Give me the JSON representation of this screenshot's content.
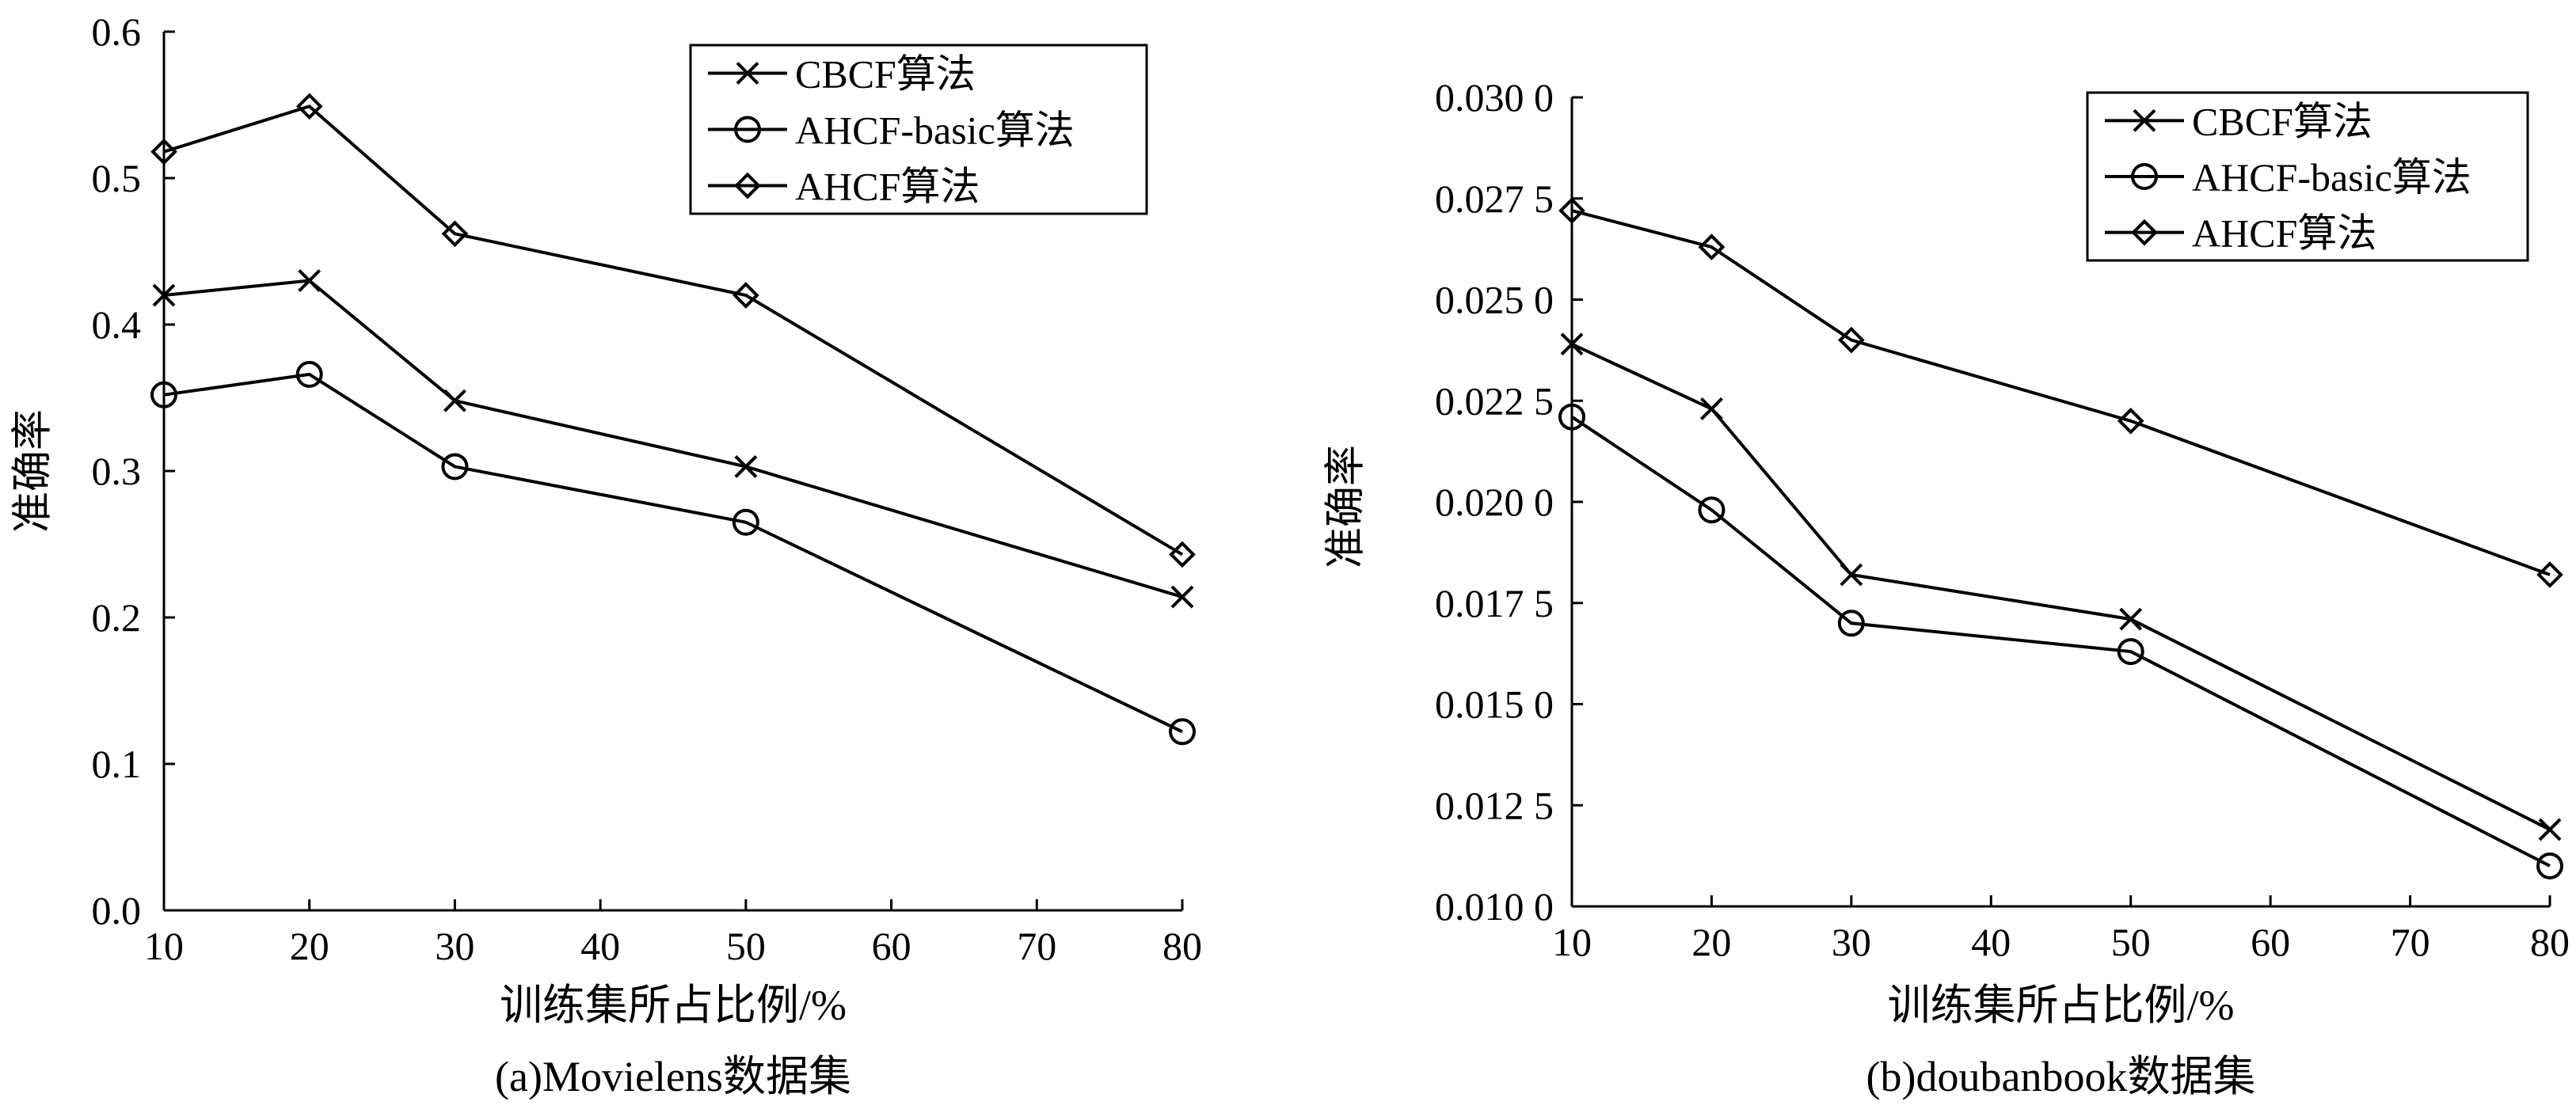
{
  "chart_data": [
    {
      "type": "line",
      "caption": "(a)Movielens数据集",
      "xlabel": "训练集所占比例/%",
      "ylabel": "准确率",
      "x": [
        10,
        20,
        30,
        50,
        80
      ],
      "xlim": [
        10,
        80
      ],
      "xticks": [
        "10",
        "20",
        "30",
        "40",
        "50",
        "60",
        "70",
        "80"
      ],
      "ylim": [
        0,
        0.6
      ],
      "yticks": [
        "0.0",
        "0.1",
        "0.2",
        "0.3",
        "0.4",
        "0.5",
        "0.6"
      ],
      "grid": false,
      "legend_position": "top-right",
      "series": [
        {
          "name": "CBCF算法",
          "marker": "x",
          "values": [
            0.42,
            0.43,
            0.348,
            0.303,
            0.214
          ]
        },
        {
          "name": "AHCF-basic算法",
          "marker": "circle",
          "values": [
            0.352,
            0.366,
            0.303,
            0.265,
            0.122
          ]
        },
        {
          "name": "AHCF算法",
          "marker": "diamond",
          "values": [
            0.518,
            0.549,
            0.462,
            0.42,
            0.243
          ]
        }
      ]
    },
    {
      "type": "line",
      "caption": "(b)doubanbook数据集",
      "xlabel": "训练集所占比例/%",
      "ylabel": "准确率",
      "x": [
        10,
        20,
        30,
        50,
        80
      ],
      "xlim": [
        10,
        80
      ],
      "xticks": [
        "10",
        "20",
        "30",
        "40",
        "50",
        "60",
        "70",
        "80"
      ],
      "ylim": [
        0.01,
        0.03
      ],
      "yticks": [
        "0.010 0",
        "0.012 5",
        "0.015 0",
        "0.017 5",
        "0.020 0",
        "0.022 5",
        "0.025 0",
        "0.027 5",
        "0.030 0"
      ],
      "grid": false,
      "legend_position": "top-right",
      "series": [
        {
          "name": "CBCF算法",
          "marker": "x",
          "values": [
            0.0239,
            0.0223,
            0.0182,
            0.0171,
            0.0119
          ]
        },
        {
          "name": "AHCF-basic算法",
          "marker": "circle",
          "values": [
            0.0221,
            0.0198,
            0.017,
            0.0163,
            0.011
          ]
        },
        {
          "name": "AHCF算法",
          "marker": "diamond",
          "values": [
            0.0272,
            0.0263,
            0.024,
            0.022,
            0.0182
          ]
        }
      ]
    }
  ]
}
